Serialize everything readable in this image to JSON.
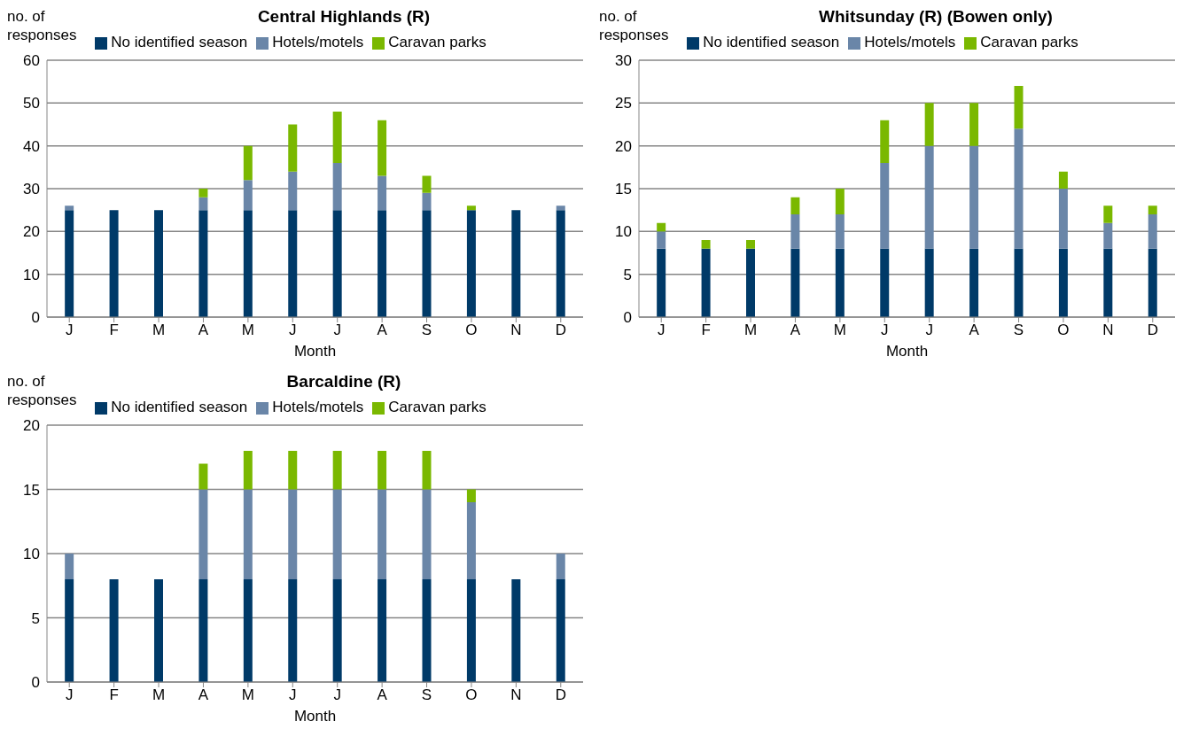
{
  "chart_data": [
    {
      "type": "bar",
      "title": "Central Highlands (R)",
      "xlabel": "Month",
      "ylabel": "no. of responses",
      "categories": [
        "J",
        "F",
        "M",
        "A",
        "M",
        "J",
        "J",
        "A",
        "S",
        "O",
        "N",
        "D"
      ],
      "stacked": true,
      "ylim": [
        0,
        60
      ],
      "yticks": [
        0,
        10,
        20,
        30,
        40,
        50,
        60
      ],
      "grid": "y",
      "legend": "top",
      "series": [
        {
          "name": "No identified season",
          "color": "#003a68",
          "values": [
            25,
            25,
            25,
            25,
            25,
            25,
            25,
            25,
            25,
            25,
            25,
            25
          ]
        },
        {
          "name": "Hotels/motels",
          "color": "#6a86a8",
          "values": [
            1,
            0,
            0,
            3,
            7,
            9,
            11,
            8,
            4,
            0,
            0,
            1
          ]
        },
        {
          "name": "Caravan parks",
          "color": "#7ab800",
          "values": [
            0,
            0,
            0,
            2,
            8,
            11,
            12,
            13,
            4,
            1,
            0,
            0
          ]
        }
      ]
    },
    {
      "type": "bar",
      "title": "Whitsunday (R) (Bowen only)",
      "xlabel": "Month",
      "ylabel": "no. of responses",
      "categories": [
        "J",
        "F",
        "M",
        "A",
        "M",
        "J",
        "J",
        "A",
        "S",
        "O",
        "N",
        "D"
      ],
      "stacked": true,
      "ylim": [
        0,
        30
      ],
      "yticks": [
        0,
        5,
        10,
        15,
        20,
        25,
        30
      ],
      "grid": "y",
      "legend": "top",
      "series": [
        {
          "name": "No identified season",
          "color": "#003a68",
          "values": [
            8,
            8,
            8,
            8,
            8,
            8,
            8,
            8,
            8,
            8,
            8,
            8
          ]
        },
        {
          "name": "Hotels/motels",
          "color": "#6a86a8",
          "values": [
            2,
            0,
            0,
            4,
            4,
            10,
            12,
            12,
            14,
            7,
            3,
            4
          ]
        },
        {
          "name": "Caravan parks",
          "color": "#7ab800",
          "values": [
            1,
            1,
            1,
            2,
            3,
            5,
            5,
            5,
            5,
            2,
            2,
            1
          ]
        }
      ]
    },
    {
      "type": "bar",
      "title": "Barcaldine (R)",
      "xlabel": "Month",
      "ylabel": "no. of responses",
      "categories": [
        "J",
        "F",
        "M",
        "A",
        "M",
        "J",
        "J",
        "A",
        "S",
        "O",
        "N",
        "D"
      ],
      "stacked": true,
      "ylim": [
        0,
        20
      ],
      "yticks": [
        0,
        5,
        10,
        15,
        20
      ],
      "grid": "y",
      "legend": "top",
      "series": [
        {
          "name": "No identified season",
          "color": "#003a68",
          "values": [
            8,
            8,
            8,
            8,
            8,
            8,
            8,
            8,
            8,
            8,
            8,
            8
          ]
        },
        {
          "name": "Hotels/motels",
          "color": "#6a86a8",
          "values": [
            2,
            0,
            0,
            7,
            7,
            7,
            7,
            7,
            7,
            6,
            0,
            2
          ]
        },
        {
          "name": "Caravan parks",
          "color": "#7ab800",
          "values": [
            0,
            0,
            0,
            2,
            3,
            3,
            3,
            3,
            3,
            1,
            0,
            0
          ]
        }
      ]
    }
  ]
}
